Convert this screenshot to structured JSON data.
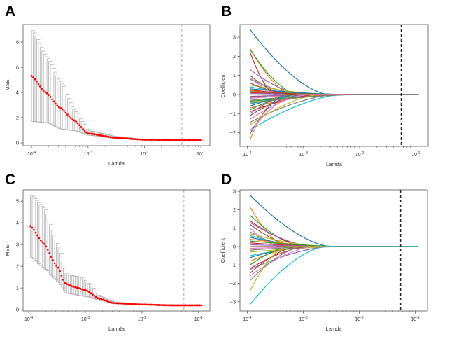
{
  "panels": [
    "A",
    "B",
    "C",
    "D"
  ],
  "chart_data": [
    {
      "panel": "A",
      "type": "scatter",
      "subtype": "errorbar",
      "xlabel": "Lamda",
      "ylabel": "MSE",
      "xscale": "log",
      "xlim_log10": [
        -4.15,
        -0.84
      ],
      "ylim": [
        -0.22,
        9.39
      ],
      "xticks": [
        "10^-4",
        "10^-3",
        "10^-2",
        "10^-1"
      ],
      "xtick_values_log10": [
        -4,
        -3,
        -2,
        -1
      ],
      "yticks": [
        0,
        2,
        4,
        6,
        8
      ],
      "n_points": 100,
      "x_range_log10": [
        -4,
        -1
      ],
      "mean_knots": [
        [
          -4,
          5.3
        ],
        [
          -3.75,
          4.0
        ],
        [
          -3.5,
          2.8
        ],
        [
          -3.25,
          1.8
        ],
        [
          -3,
          0.75
        ],
        [
          -2.5,
          0.4
        ],
        [
          -2,
          0.25
        ],
        [
          -1,
          0.22
        ]
      ],
      "upper_knots": [
        [
          -4,
          8.9
        ],
        [
          -3.75,
          6.8
        ],
        [
          -3.5,
          4.8
        ],
        [
          -3.25,
          2.5
        ],
        [
          -3,
          0.95
        ],
        [
          -2.5,
          0.5
        ],
        [
          -2,
          0.28
        ],
        [
          -1,
          0.22
        ]
      ],
      "lower_knots": [
        [
          -4,
          1.7
        ],
        [
          -3.75,
          1.6
        ],
        [
          -3.5,
          1.1
        ],
        [
          -3.25,
          0.95
        ],
        [
          -3,
          0.6
        ],
        [
          -2.5,
          0.35
        ],
        [
          -2,
          0.22
        ],
        [
          -1,
          0.2
        ]
      ],
      "vline_lambda": 0.046,
      "point_color": "#ff0000",
      "errorbar_color": "#b0b0b0",
      "vline_color": "#aaaaaa"
    },
    {
      "panel": "B",
      "type": "line",
      "xlabel": "Lamda",
      "ylabel": "Coefficient",
      "xscale": "log",
      "xlim_log10": [
        -4.13,
        -0.78
      ],
      "ylim": [
        -2.71,
        3.66
      ],
      "xticks": [
        "10^-4",
        "10^-3",
        "10^-2",
        "10^-1"
      ],
      "xtick_values_log10": [
        -4,
        -3,
        -2,
        -1
      ],
      "yticks": [
        -2,
        -1,
        0,
        1,
        2,
        3
      ],
      "x_range_log10": [
        -3.95,
        -0.95
      ],
      "paths": [
        [
          3.4,
          -2.55
        ],
        [
          2.4,
          -3.2
        ],
        [
          2.35,
          -3.1
        ],
        [
          2.2,
          -3.5
        ],
        [
          1.3,
          -3.0
        ],
        [
          1.0,
          -3.3
        ],
        [
          0.9,
          -3.4
        ],
        [
          0.8,
          -3.0
        ],
        [
          0.5,
          -2.5
        ],
        [
          0.4,
          -2.8
        ],
        [
          0.3,
          -2.2
        ],
        [
          0.2,
          -2.5
        ],
        [
          0.15,
          -2.0
        ],
        [
          0.1,
          -2.3
        ],
        [
          0.05,
          -2.1
        ],
        [
          -0.1,
          -2.4
        ],
        [
          -0.2,
          -2.6
        ],
        [
          -0.3,
          -2.2
        ],
        [
          -0.4,
          -2.0
        ],
        [
          -0.5,
          -2.8
        ],
        [
          -0.6,
          -3.0
        ],
        [
          -0.7,
          -2.5
        ],
        [
          -0.8,
          -3.1
        ],
        [
          -0.9,
          -2.7
        ],
        [
          -1.0,
          -3.2
        ],
        [
          -1.1,
          -3.0
        ],
        [
          -1.3,
          -2.9
        ],
        [
          -1.45,
          -2.4
        ],
        [
          -1.6,
          -2.7
        ],
        [
          -1.85,
          -2.3
        ],
        [
          -2.05,
          -3.3
        ],
        [
          -2.35,
          -3.4
        ],
        [
          -0.35,
          -1.9
        ],
        [
          0.25,
          -2.9
        ],
        [
          -0.15,
          -3.0
        ],
        [
          0.6,
          -3.2
        ],
        [
          -1.9,
          -3.1
        ],
        [
          -0.45,
          -2.05
        ]
      ],
      "vline_lambda": 0.055,
      "vline_color": "#222222"
    },
    {
      "panel": "C",
      "type": "scatter",
      "subtype": "errorbar",
      "xlabel": "Lamda",
      "ylabel": "MSE",
      "xscale": "log",
      "xlim_log10": [
        -4.1,
        -0.8
      ],
      "ylim": [
        -0.06,
        5.52
      ],
      "xticks": [
        "10^-4",
        "10^-3",
        "10^-2",
        "10^-1"
      ],
      "xtick_values_log10": [
        -4,
        -3,
        -2,
        -1
      ],
      "yticks": [
        0,
        1,
        2,
        3,
        4,
        5
      ],
      "n_points": 100,
      "x_range_log10": [
        -3.97,
        -0.95
      ],
      "mean_knots": [
        [
          -3.97,
          3.85
        ],
        [
          -3.75,
          3.1
        ],
        [
          -3.5,
          2.0
        ],
        [
          -3.35,
          1.2
        ],
        [
          -3.2,
          1.05
        ],
        [
          -3,
          0.9
        ],
        [
          -2.75,
          0.5
        ],
        [
          -2.5,
          0.3
        ],
        [
          -2,
          0.24
        ],
        [
          -1.5,
          0.2
        ],
        [
          -0.95,
          0.2
        ]
      ],
      "upper_knots": [
        [
          -3.97,
          5.25
        ],
        [
          -3.75,
          4.7
        ],
        [
          -3.5,
          3.0
        ],
        [
          -3.35,
          1.6
        ],
        [
          -3.1,
          1.5
        ],
        [
          -2.95,
          1.2
        ],
        [
          -2.75,
          0.6
        ],
        [
          -2.5,
          0.35
        ],
        [
          -2,
          0.25
        ],
        [
          -0.95,
          0.2
        ]
      ],
      "lower_knots": [
        [
          -3.97,
          2.4
        ],
        [
          -3.75,
          1.9
        ],
        [
          -3.5,
          1.3
        ],
        [
          -3.35,
          0.75
        ],
        [
          -3,
          0.6
        ],
        [
          -2.75,
          0.42
        ],
        [
          -2.5,
          0.3
        ],
        [
          -2,
          0.23
        ],
        [
          -0.95,
          0.19
        ]
      ],
      "vline_lambda": 0.055,
      "point_color": "#ff0000",
      "errorbar_color": "#b0b0b0",
      "vline_color": "#aaaaaa"
    },
    {
      "panel": "D",
      "type": "line",
      "xlabel": "Lamda",
      "ylabel": "Coefficient",
      "xscale": "log",
      "xlim_log10": [
        -4.13,
        -0.78
      ],
      "ylim": [
        -3.5,
        3.08
      ],
      "xticks": [
        "10^-4",
        "10^-3",
        "10^-2",
        "10^-1"
      ],
      "xtick_values_log10": [
        -4,
        -3,
        -2,
        -1
      ],
      "yticks": [
        -3,
        -2,
        -1,
        0,
        1,
        2,
        3
      ],
      "x_range_log10": [
        -3.95,
        -0.95
      ],
      "paths": [
        [
          2.8,
          -2.5
        ],
        [
          2.15,
          -3.3
        ],
        [
          1.7,
          -3.0
        ],
        [
          1.4,
          -2.9
        ],
        [
          1.3,
          -2.8
        ],
        [
          1.2,
          -3.1
        ],
        [
          1.0,
          -3.4
        ],
        [
          0.8,
          -3.2
        ],
        [
          0.7,
          -2.6
        ],
        [
          0.6,
          -2.9
        ],
        [
          0.5,
          -2.7
        ],
        [
          0.4,
          -2.4
        ],
        [
          0.3,
          -2.2
        ],
        [
          0.2,
          -2.5
        ],
        [
          0.1,
          -2.3
        ],
        [
          0.0,
          -2.0
        ],
        [
          -0.1,
          -2.4
        ],
        [
          -0.2,
          -2.6
        ],
        [
          -0.3,
          -2.2
        ],
        [
          -0.5,
          -2.7
        ],
        [
          -0.6,
          -2.9
        ],
        [
          -0.8,
          -3.0
        ],
        [
          -1.0,
          -3.2
        ],
        [
          -1.2,
          -2.9
        ],
        [
          -1.25,
          -2.5
        ],
        [
          -1.45,
          -3.1
        ],
        [
          -1.6,
          -2.8
        ],
        [
          -1.85,
          -3.0
        ],
        [
          -2.4,
          -3.3
        ],
        [
          -3.15,
          -2.6
        ]
      ],
      "vline_lambda": 0.055,
      "vline_color": "#222222"
    }
  ],
  "colors": [
    "#1f77b4",
    "#ff7f0e",
    "#2ca02c",
    "#d62728",
    "#9467bd",
    "#8c564b",
    "#e377c2",
    "#7f7f7f",
    "#bcbd22",
    "#17becf"
  ]
}
